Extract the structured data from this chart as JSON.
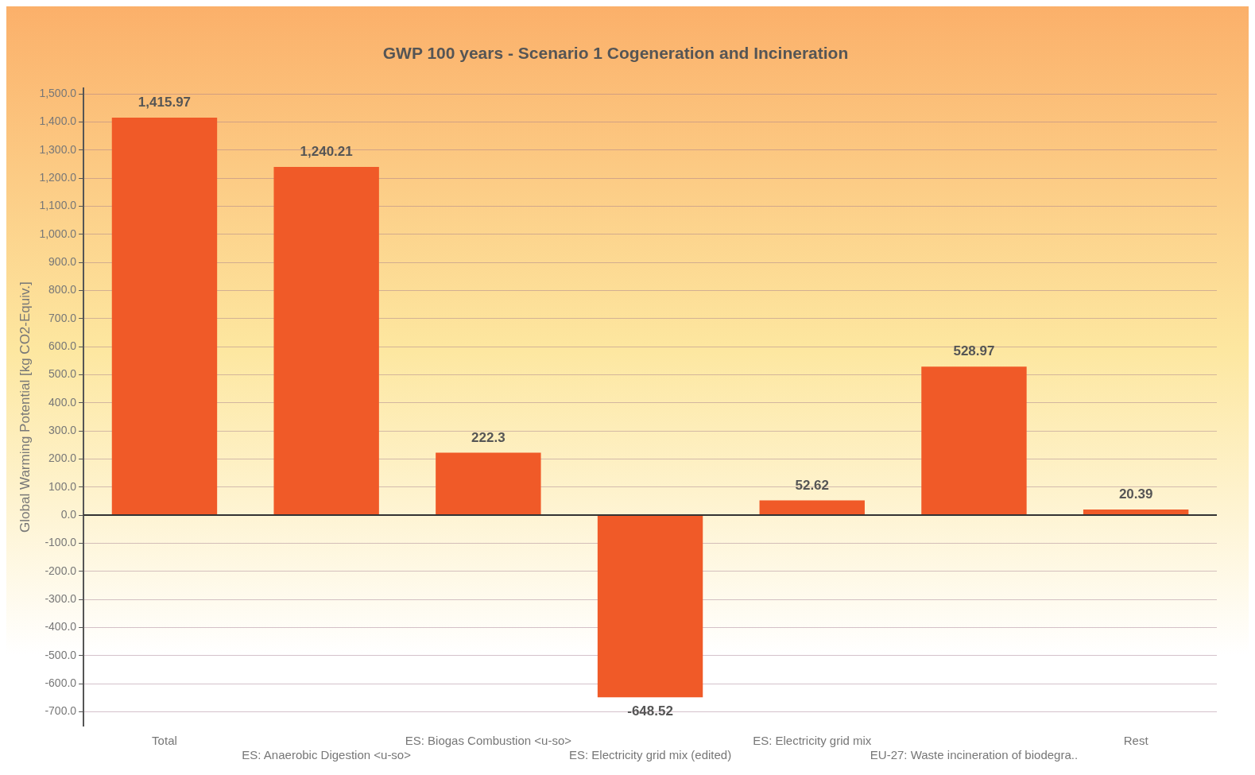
{
  "chart_data": {
    "type": "bar",
    "title": "GWP 100 years - Scenario 1 Cogeneration and Incineration",
    "ylabel": "Global Warming Potential [kg CO2-Equiv.]",
    "categories": [
      "Total",
      "ES: Anaerobic Digestion <u-so>",
      "ES: Biogas Combustion <u-so>",
      "ES: Electricity grid mix (edited)",
      "ES: Electricity grid mix",
      "EU-27: Waste incineration of biodegra..",
      "Rest"
    ],
    "values": [
      1415.97,
      1240.21,
      222.3,
      -648.52,
      52.62,
      528.97,
      20.39
    ],
    "value_labels": [
      "1,415.97",
      "1,240.21",
      "222.3",
      "-648.52",
      "52.62",
      "528.97",
      "20.39"
    ],
    "color": "#f05a28",
    "ylim": [
      -750,
      1520
    ],
    "yticks": [
      {
        "value": -700,
        "label": "-700.0"
      },
      {
        "value": -600,
        "label": "-600.0"
      },
      {
        "value": -500,
        "label": "-500.0"
      },
      {
        "value": -400,
        "label": "-400.0"
      },
      {
        "value": -300,
        "label": "-300.0"
      },
      {
        "value": -200,
        "label": "-200.0"
      },
      {
        "value": -100,
        "label": "-100.0"
      },
      {
        "value": 0,
        "label": "0.0"
      },
      {
        "value": 100,
        "label": "100.0"
      },
      {
        "value": 200,
        "label": "200.0"
      },
      {
        "value": 300,
        "label": "300.0"
      },
      {
        "value": 400,
        "label": "400.0"
      },
      {
        "value": 500,
        "label": "500.0"
      },
      {
        "value": 600,
        "label": "600.0"
      },
      {
        "value": 700,
        "label": "700.0"
      },
      {
        "value": 800,
        "label": "800.0"
      },
      {
        "value": 900,
        "label": "900.0"
      },
      {
        "value": 1000,
        "label": "1,000.0"
      },
      {
        "value": 1100,
        "label": "1,100.0"
      },
      {
        "value": 1200,
        "label": "1,200.0"
      },
      {
        "value": 1300,
        "label": "1,300.0"
      },
      {
        "value": 1400,
        "label": "1,400.0"
      },
      {
        "value": 1500,
        "label": "1,500.0"
      }
    ],
    "grid": "y",
    "legend": false
  }
}
